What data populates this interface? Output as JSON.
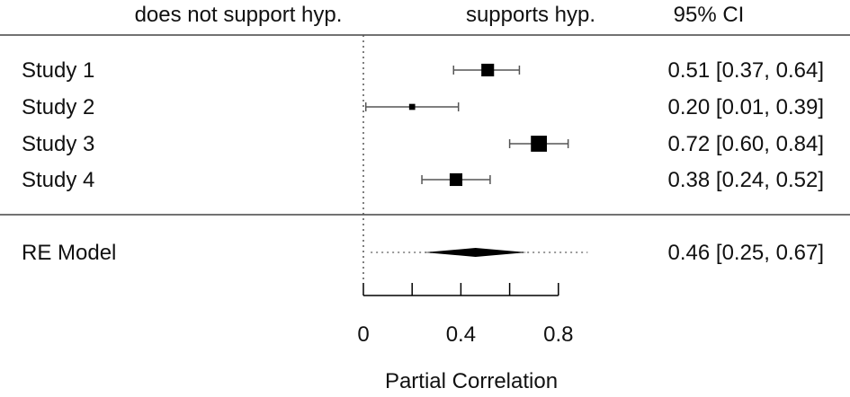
{
  "chart_data": {
    "type": "forest",
    "header": {
      "left": "does not support hyp.",
      "right": "supports hyp.",
      "ci": "95% CI"
    },
    "studies": [
      {
        "label": "Study 1",
        "estimate": 0.51,
        "lower": 0.37,
        "upper": 0.64,
        "ci_text": "0.51 [0.37, 0.64]",
        "weight": 3
      },
      {
        "label": "Study 2",
        "estimate": 0.2,
        "lower": 0.01,
        "upper": 0.39,
        "ci_text": "0.20 [0.01, 0.39]",
        "weight": 1
      },
      {
        "label": "Study 3",
        "estimate": 0.72,
        "lower": 0.6,
        "upper": 0.84,
        "ci_text": "0.72 [0.60, 0.84]",
        "weight": 4
      },
      {
        "label": "Study 4",
        "estimate": 0.38,
        "lower": 0.24,
        "upper": 0.52,
        "ci_text": "0.38 [0.24, 0.52]",
        "weight": 3
      }
    ],
    "summary": {
      "label": "RE Model",
      "estimate": 0.46,
      "lower": 0.25,
      "upper": 0.67,
      "pi_lower": 0.03,
      "pi_upper": 0.92,
      "ci_text": "0.46 [0.25, 0.67]"
    },
    "x_ticks": [
      0,
      0.2,
      0.4,
      0.6,
      0.8
    ],
    "x_tick_labels": [
      {
        "value": 0,
        "label": "0"
      },
      {
        "value": 0.4,
        "label": "0.4"
      },
      {
        "value": 0.8,
        "label": "0.8"
      }
    ],
    "xlabel": "Partial Correlation",
    "xlim": [
      0,
      1
    ],
    "reference_line": 0
  }
}
